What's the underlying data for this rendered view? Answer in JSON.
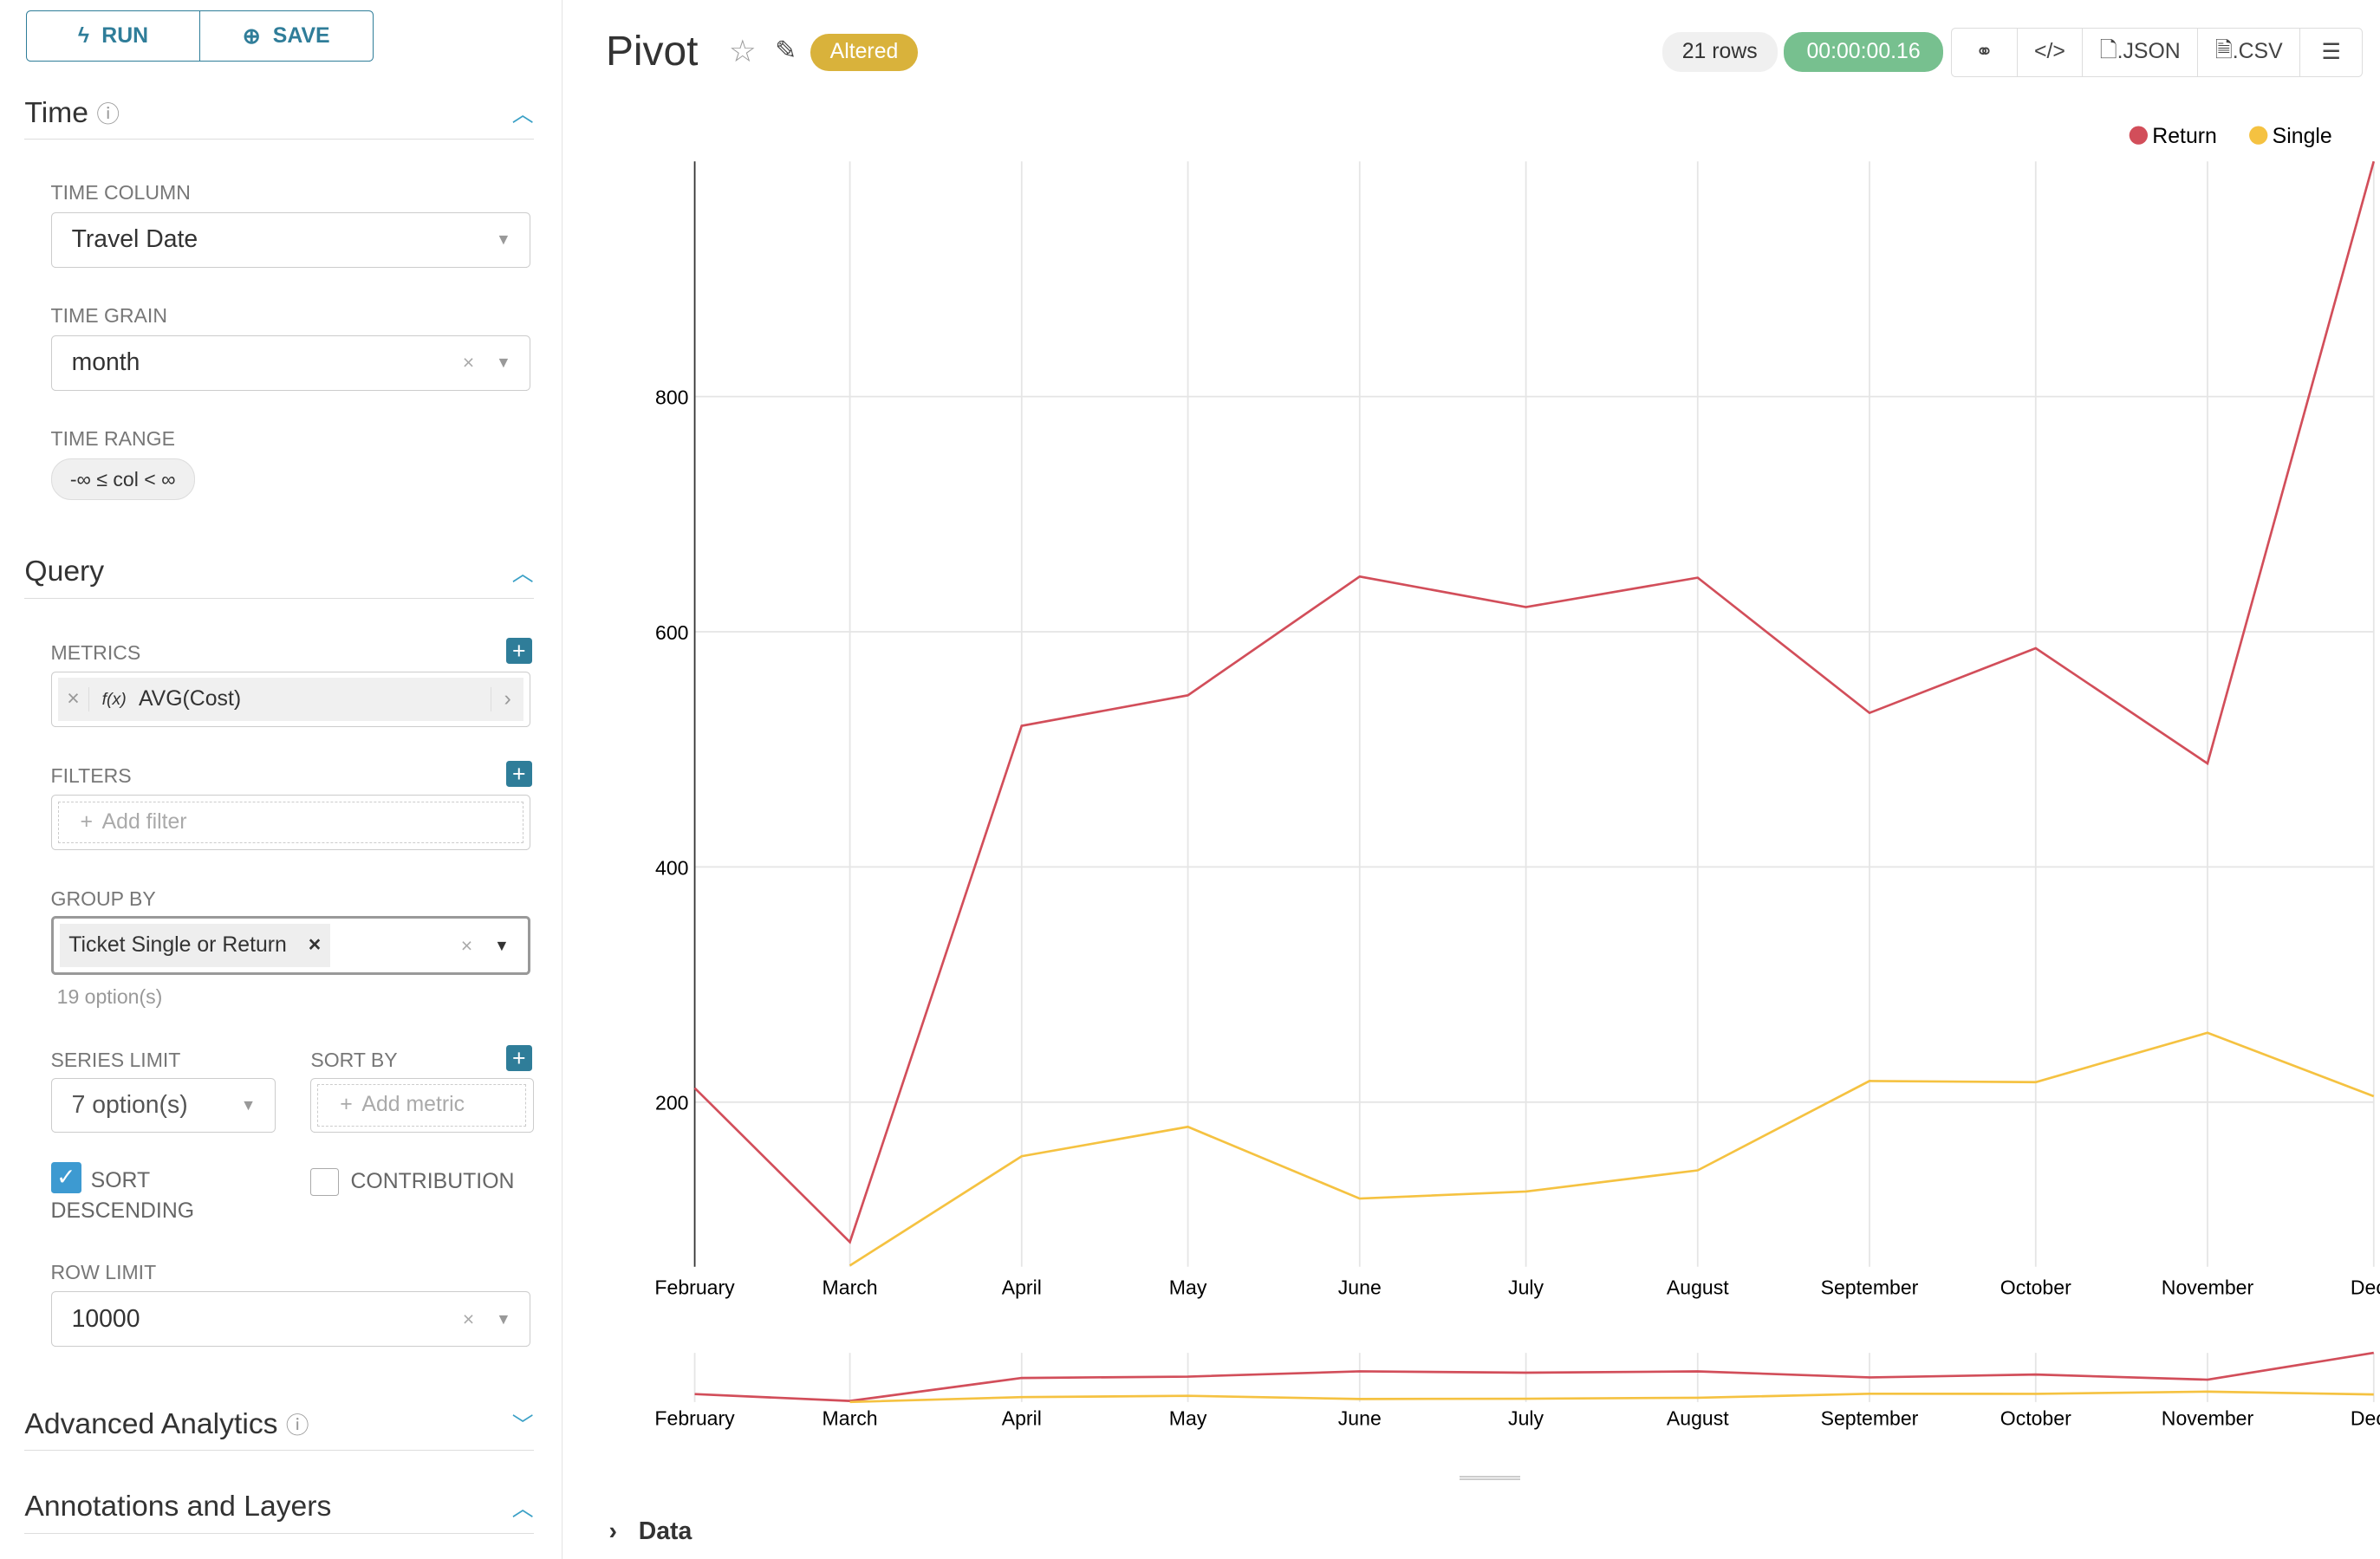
{
  "toolbar": {
    "run": "RUN",
    "save": "SAVE"
  },
  "time": {
    "title": "Time",
    "column_label": "TIME COLUMN",
    "column_value": "Travel Date",
    "grain_label": "TIME GRAIN",
    "grain_value": "month",
    "range_label": "TIME RANGE",
    "range_value": "-∞ ≤ col < ∞"
  },
  "query": {
    "title": "Query",
    "metrics_label": "METRICS",
    "metric": "AVG(Cost)",
    "metric_fx": "f(x)",
    "filters_label": "FILTERS",
    "add_filter": "Add filter",
    "groupby_label": "GROUP BY",
    "groupby_value": "Ticket Single or Return",
    "groupby_options": "19 option(s)",
    "series_limit_label": "SERIES LIMIT",
    "series_limit_value": "7 option(s)",
    "sortby_label": "SORT BY",
    "add_metric": "Add metric",
    "sort_desc_label": "SORT DESCENDING",
    "sort_desc_checked": true,
    "contribution_label": "CONTRIBUTION",
    "contribution_checked": false,
    "row_limit_label": "ROW LIMIT",
    "row_limit_value": "10000"
  },
  "sections": {
    "advanced": "Advanced Analytics",
    "annotations": "Annotations and Layers"
  },
  "header": {
    "title": "Pivot",
    "altered": "Altered",
    "rows": "21 rows",
    "duration": "00:00:00.16",
    "json": ".JSON",
    "csv": ".CSV"
  },
  "data_toggle": "Data",
  "colors": {
    "accent": "#2f7d99",
    "altered": "#d9b23b",
    "duration": "#77c08f",
    "return": "#d24e5a",
    "single": "#f5c241"
  },
  "chart_data": {
    "type": "line",
    "x": [
      "February",
      "March",
      "April",
      "May",
      "June",
      "July",
      "August",
      "September",
      "October",
      "November",
      "December"
    ],
    "xtick_labels": [
      "February",
      "March",
      "April",
      "May",
      "June",
      "July",
      "August",
      "September",
      "October",
      "November",
      "Dece"
    ],
    "ylim": [
      60,
      1000
    ],
    "yticks": [
      200,
      400,
      600,
      800
    ],
    "grid": true,
    "legend": "top-right",
    "series": [
      {
        "name": "Return",
        "color": "#d24e5a",
        "values": [
          212,
          81,
          520,
          546,
          647,
          621,
          646,
          531,
          586,
          488,
          1000
        ]
      },
      {
        "name": "Single",
        "color": "#f5c241",
        "values": [
          null,
          61,
          154,
          179,
          118,
          124,
          142,
          218,
          217,
          259,
          205
        ]
      }
    ]
  }
}
